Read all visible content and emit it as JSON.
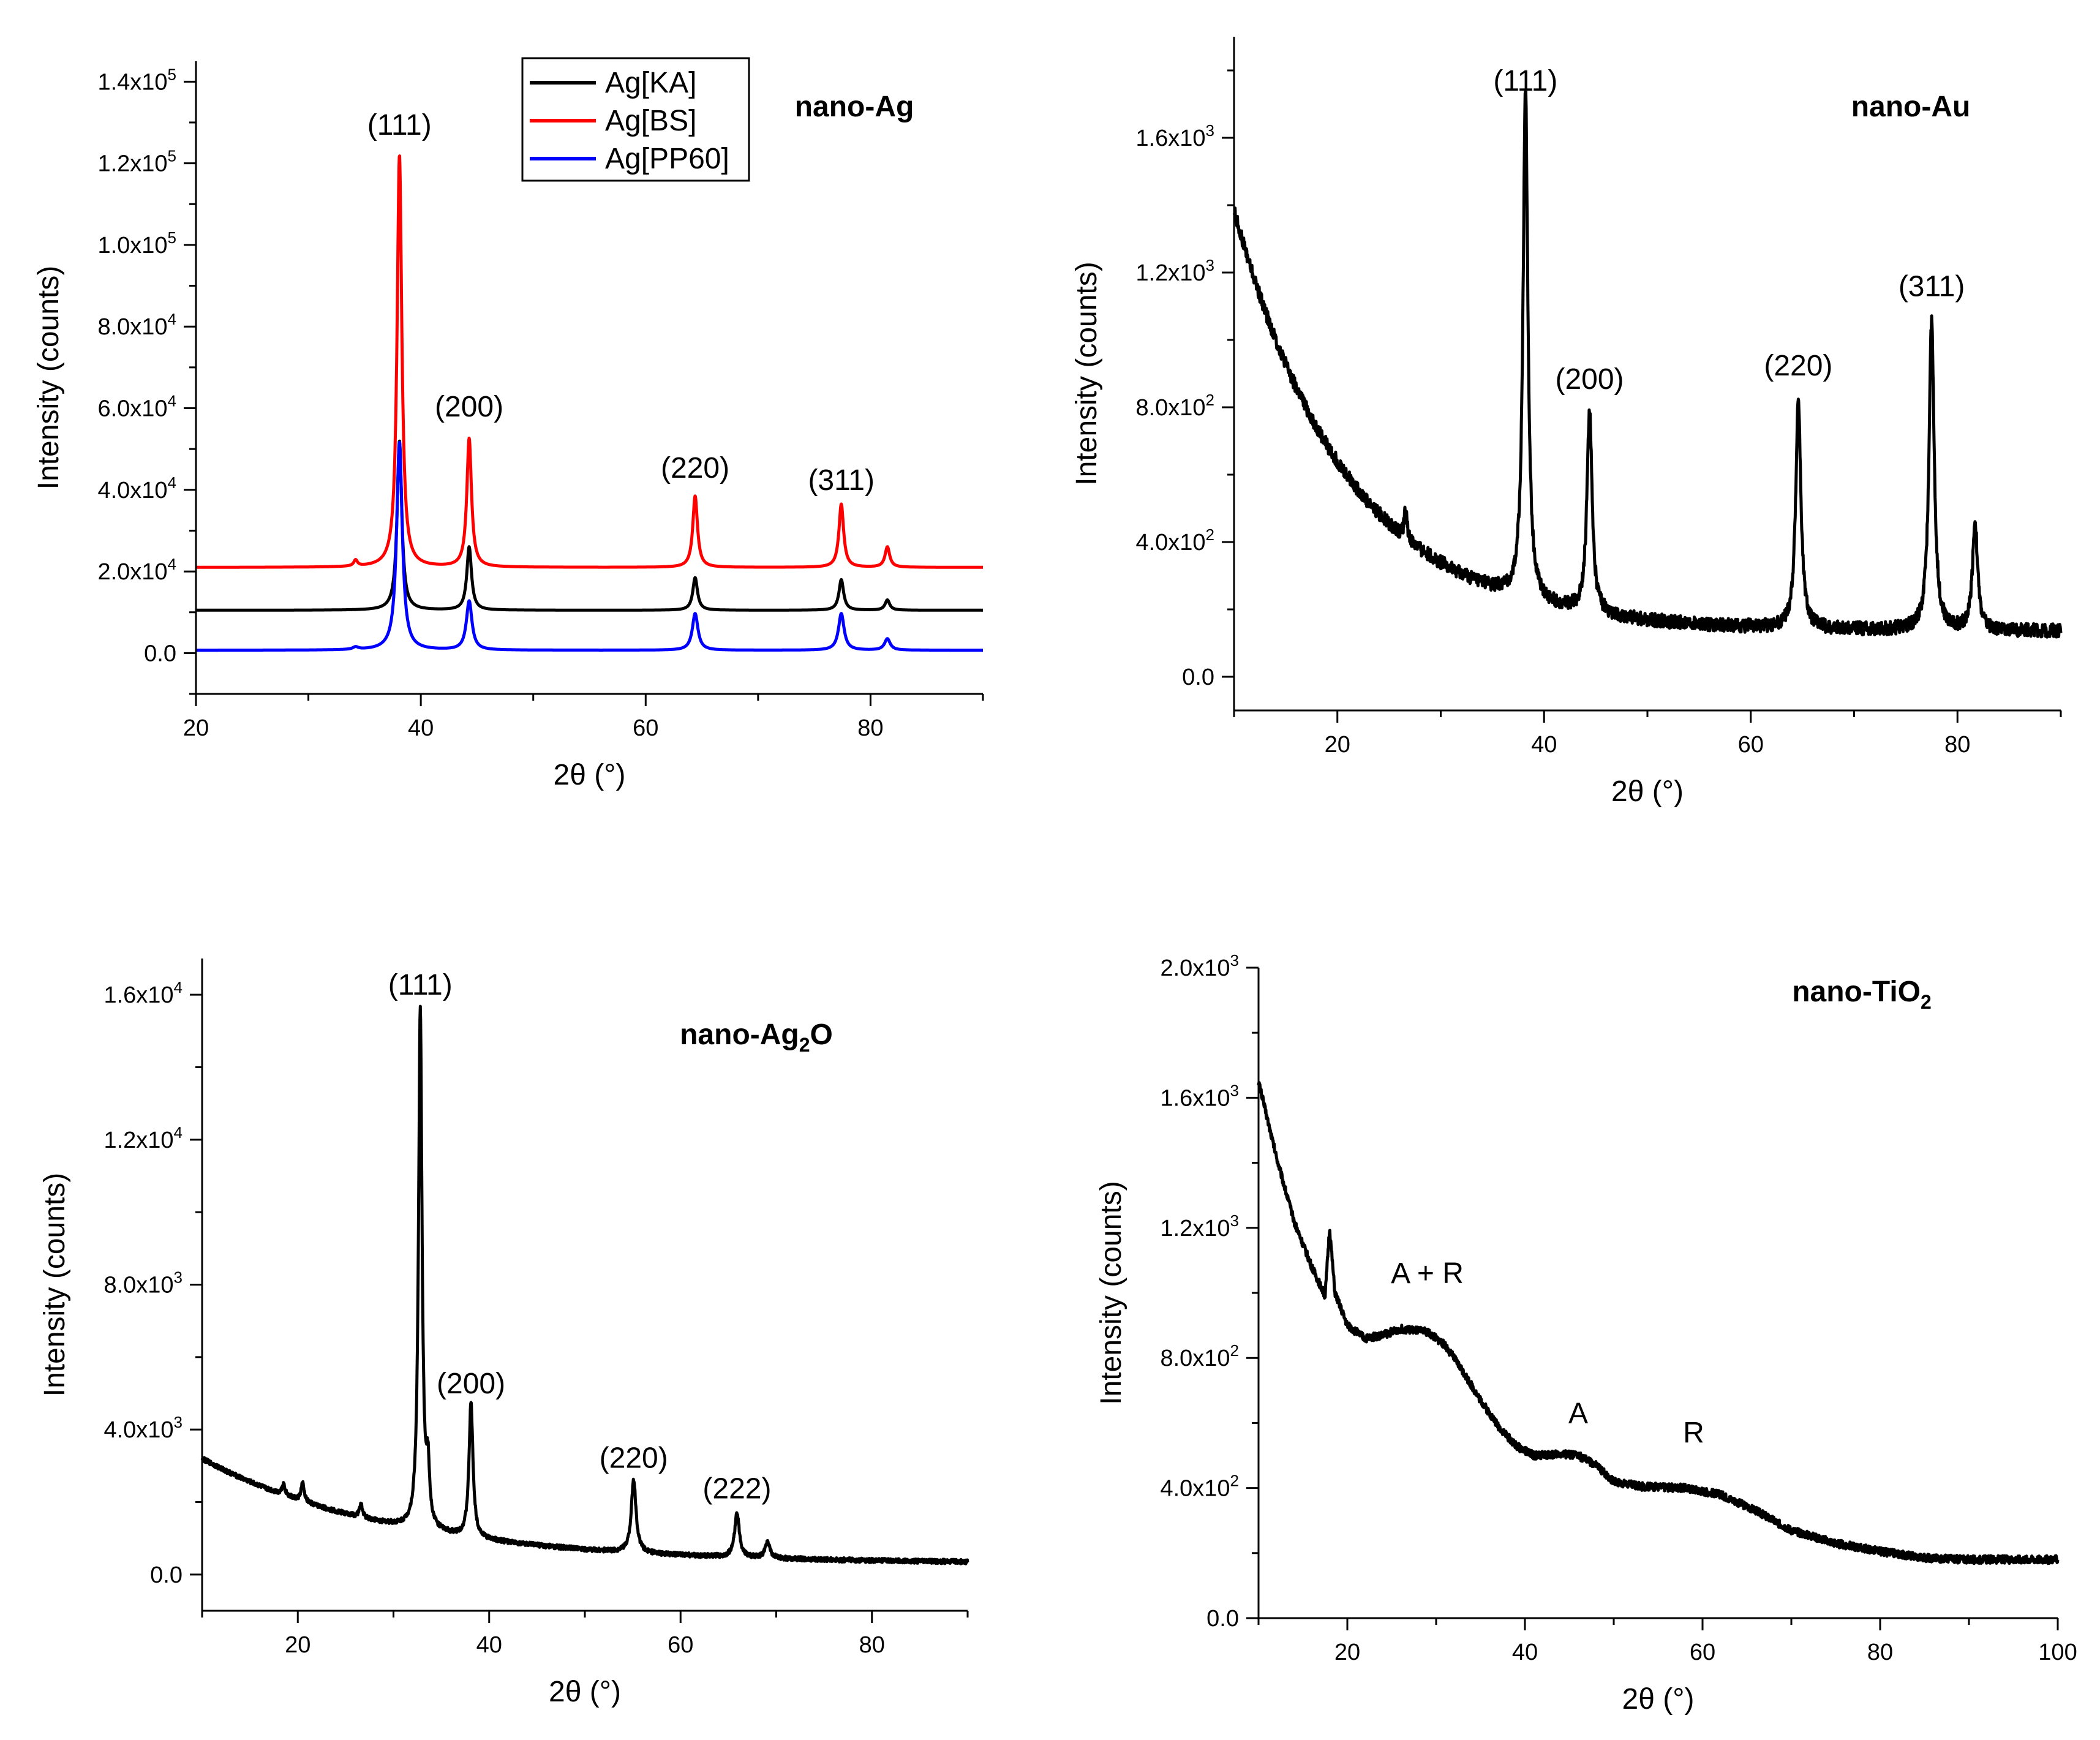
{
  "chart_data": [
    {
      "id": "ag",
      "type": "line",
      "title": "nano-Ag",
      "xlabel": "2θ (°)",
      "ylabel": "Intensity (counts)",
      "xlim": [
        20,
        90
      ],
      "ylim": [
        -10000,
        145000
      ],
      "xticks": [
        {
          "v": 20,
          "label": "20"
        },
        {
          "v": 40,
          "label": "40"
        },
        {
          "v": 60,
          "label": "60"
        },
        {
          "v": 80,
          "label": "80"
        }
      ],
      "yticks": [
        {
          "v": 0,
          "label": "0.0"
        },
        {
          "v": 20000,
          "label": "2.0x10",
          "exp": "4"
        },
        {
          "v": 40000,
          "label": "4.0x10",
          "exp": "4"
        },
        {
          "v": 60000,
          "label": "6.0x10",
          "exp": "4"
        },
        {
          "v": 80000,
          "label": "8.0x10",
          "exp": "4"
        },
        {
          "v": 100000,
          "label": "1.0x10",
          "exp": "5"
        },
        {
          "v": 120000,
          "label": "1.2x10",
          "exp": "5"
        },
        {
          "v": 140000,
          "label": "1.4x10",
          "exp": "5"
        }
      ],
      "legend": {
        "position": "top-center"
      },
      "series": [
        {
          "name": "Ag[KA]",
          "color": "#000000",
          "baseline": 10500,
          "peaks": [
            [
              38.1,
              41500,
              0.25
            ],
            [
              44.3,
              15500,
              0.25
            ],
            [
              64.4,
              8000,
              0.25
            ],
            [
              77.4,
              7500,
              0.25
            ],
            [
              81.5,
              2500,
              0.25
            ]
          ]
        },
        {
          "name": "Ag[BS]",
          "color": "#ff0000",
          "baseline": 21000,
          "peaks": [
            [
              34.2,
              1500,
              0.2
            ],
            [
              38.1,
              101000,
              0.25
            ],
            [
              44.3,
              31500,
              0.25
            ],
            [
              64.4,
              17500,
              0.25
            ],
            [
              77.4,
              15500,
              0.25
            ],
            [
              81.5,
              5000,
              0.25
            ]
          ]
        },
        {
          "name": "Ag[PP60]",
          "color": "#0000ff",
          "baseline": 700,
          "peaks": [
            [
              34.2,
              600,
              0.3
            ],
            [
              38.1,
              51000,
              0.3
            ],
            [
              44.3,
              12000,
              0.3
            ],
            [
              64.4,
              9000,
              0.3
            ],
            [
              77.4,
              9000,
              0.3
            ],
            [
              81.5,
              2800,
              0.3
            ]
          ]
        }
      ],
      "annotations": [
        {
          "text": "(111)",
          "x": 38.1,
          "y": 127000
        },
        {
          "text": "(200)",
          "x": 44.3,
          "y": 58000
        },
        {
          "text": "(220)",
          "x": 64.4,
          "y": 43000
        },
        {
          "text": "(311)",
          "x": 77.4,
          "y": 40000
        }
      ]
    },
    {
      "id": "au",
      "type": "line",
      "title": "nano-Au",
      "xlabel": "2θ (°)",
      "ylabel": "Intensity (counts)",
      "xlim": [
        10,
        90
      ],
      "ylim": [
        -100,
        1900
      ],
      "xticks": [
        {
          "v": 20,
          "label": "20"
        },
        {
          "v": 40,
          "label": "40"
        },
        {
          "v": 60,
          "label": "60"
        },
        {
          "v": 80,
          "label": "80"
        }
      ],
      "yticks": [
        {
          "v": 0,
          "label": "0.0"
        },
        {
          "v": 400,
          "label": "4.0x10",
          "exp": "2"
        },
        {
          "v": 800,
          "label": "8.0x10",
          "exp": "2"
        },
        {
          "v": 1200,
          "label": "1.2x10",
          "exp": "3"
        },
        {
          "v": 1600,
          "label": "1.6x10",
          "exp": "3"
        }
      ],
      "series": [
        {
          "name": "nano-Au",
          "color": "#000000",
          "background": {
            "type": "decay",
            "floor": 135,
            "amp": 1250,
            "decay": 11,
            "x0": 10
          },
          "noise": 20,
          "peaks": [
            [
              26.6,
              90,
              0.15
            ],
            [
              38.2,
              1520,
              0.28
            ],
            [
              44.4,
              600,
              0.3
            ],
            [
              64.6,
              680,
              0.3
            ],
            [
              77.5,
              920,
              0.3
            ],
            [
              81.7,
              320,
              0.3
            ]
          ]
        }
      ],
      "annotations": [
        {
          "text": "(111)",
          "x": 38.2,
          "y": 1740
        },
        {
          "text": "(200)",
          "x": 44.4,
          "y": 855
        },
        {
          "text": "(220)",
          "x": 64.6,
          "y": 895
        },
        {
          "text": "(311)",
          "x": 77.5,
          "y": 1130
        }
      ]
    },
    {
      "id": "ag2o",
      "type": "line",
      "title": "nano-Ag",
      "title_sub": "2",
      "title_tail": "O",
      "xlabel": "2θ (°)",
      "ylabel": "Intensity (counts)",
      "xlim": [
        10,
        90
      ],
      "ylim": [
        -1000,
        17000
      ],
      "xticks": [
        {
          "v": 20,
          "label": "20"
        },
        {
          "v": 40,
          "label": "40"
        },
        {
          "v": 60,
          "label": "60"
        },
        {
          "v": 80,
          "label": "80"
        }
      ],
      "yticks": [
        {
          "v": 0,
          "label": "0.0"
        },
        {
          "v": 4000,
          "label": "4.0x10",
          "exp": "3"
        },
        {
          "v": 8000,
          "label": "8.0x10",
          "exp": "3"
        },
        {
          "v": 12000,
          "label": "1.2x10",
          "exp": "4"
        },
        {
          "v": 16000,
          "label": "1.6x10",
          "exp": "4"
        }
      ],
      "series": [
        {
          "name": "nano-Ag2O",
          "color": "#000000",
          "background": {
            "type": "decay",
            "floor": 300,
            "amp": 2900,
            "decay": 20,
            "x0": 10
          },
          "noise": 60,
          "peaks": [
            [
              18.5,
              300,
              0.2
            ],
            [
              20.5,
              500,
              0.2
            ],
            [
              26.6,
              350,
              0.2
            ],
            [
              32.8,
              14300,
              0.22
            ],
            [
              33.6,
              1500,
              0.2
            ],
            [
              38.1,
              3700,
              0.25
            ],
            [
              55.1,
              2000,
              0.3
            ],
            [
              65.9,
              1200,
              0.3
            ],
            [
              69.1,
              450,
              0.3
            ]
          ]
        }
      ],
      "annotations": [
        {
          "text": "(111)",
          "x": 32.8,
          "y": 16000
        },
        {
          "text": "(200)",
          "x": 38.1,
          "y": 5000
        },
        {
          "text": "(220)",
          "x": 55.1,
          "y": 2950
        },
        {
          "text": "(222)",
          "x": 65.9,
          "y": 2100
        }
      ]
    },
    {
      "id": "tio2",
      "type": "line",
      "title": "nano-TiO",
      "title_sub": "2",
      "title_tail": "",
      "xlabel": "2θ (°)",
      "ylabel": "Intensity (counts)",
      "xlim": [
        10,
        100
      ],
      "ylim": [
        0,
        2000
      ],
      "xticks": [
        {
          "v": 20,
          "label": "20"
        },
        {
          "v": 40,
          "label": "40"
        },
        {
          "v": 60,
          "label": "60"
        },
        {
          "v": 80,
          "label": "80"
        },
        {
          "v": 100,
          "label": "100"
        }
      ],
      "yticks": [
        {
          "v": 0,
          "label": "0.0"
        },
        {
          "v": 400,
          "label": "4.0x10",
          "exp": "2"
        },
        {
          "v": 800,
          "label": "8.0x10",
          "exp": "2"
        },
        {
          "v": 1200,
          "label": "1.2x10",
          "exp": "3"
        },
        {
          "v": 1600,
          "label": "1.6x10",
          "exp": "3"
        },
        {
          "v": 2000,
          "label": "2.0x10",
          "exp": "3"
        }
      ],
      "series": [
        {
          "name": "nano-TiO2",
          "color": "#000000",
          "noise": 12,
          "profile": [
            [
              10,
              1650
            ],
            [
              12,
              1420
            ],
            [
              14,
              1220
            ],
            [
              16,
              1080
            ],
            [
              17.5,
              990
            ],
            [
              18.0,
              1200
            ],
            [
              18.6,
              1000
            ],
            [
              20,
              900
            ],
            [
              22,
              860
            ],
            [
              24,
              870
            ],
            [
              26,
              890
            ],
            [
              29,
              880
            ],
            [
              31,
              840
            ],
            [
              33,
              760
            ],
            [
              35,
              670
            ],
            [
              37,
              590
            ],
            [
              39,
              530
            ],
            [
              41,
              500
            ],
            [
              44,
              505
            ],
            [
              46,
              500
            ],
            [
              48,
              470
            ],
            [
              50,
              420
            ],
            [
              53,
              405
            ],
            [
              58,
              400
            ],
            [
              62,
              380
            ],
            [
              66,
              330
            ],
            [
              70,
              270
            ],
            [
              75,
              230
            ],
            [
              80,
              205
            ],
            [
              85,
              185
            ],
            [
              90,
              180
            ],
            [
              95,
              180
            ],
            [
              100,
              180
            ]
          ]
        }
      ],
      "annotations": [
        {
          "text": "A + R",
          "x": 29,
          "y": 1030
        },
        {
          "text": "A",
          "x": 46,
          "y": 600
        },
        {
          "text": "R",
          "x": 59,
          "y": 540
        }
      ]
    }
  ]
}
